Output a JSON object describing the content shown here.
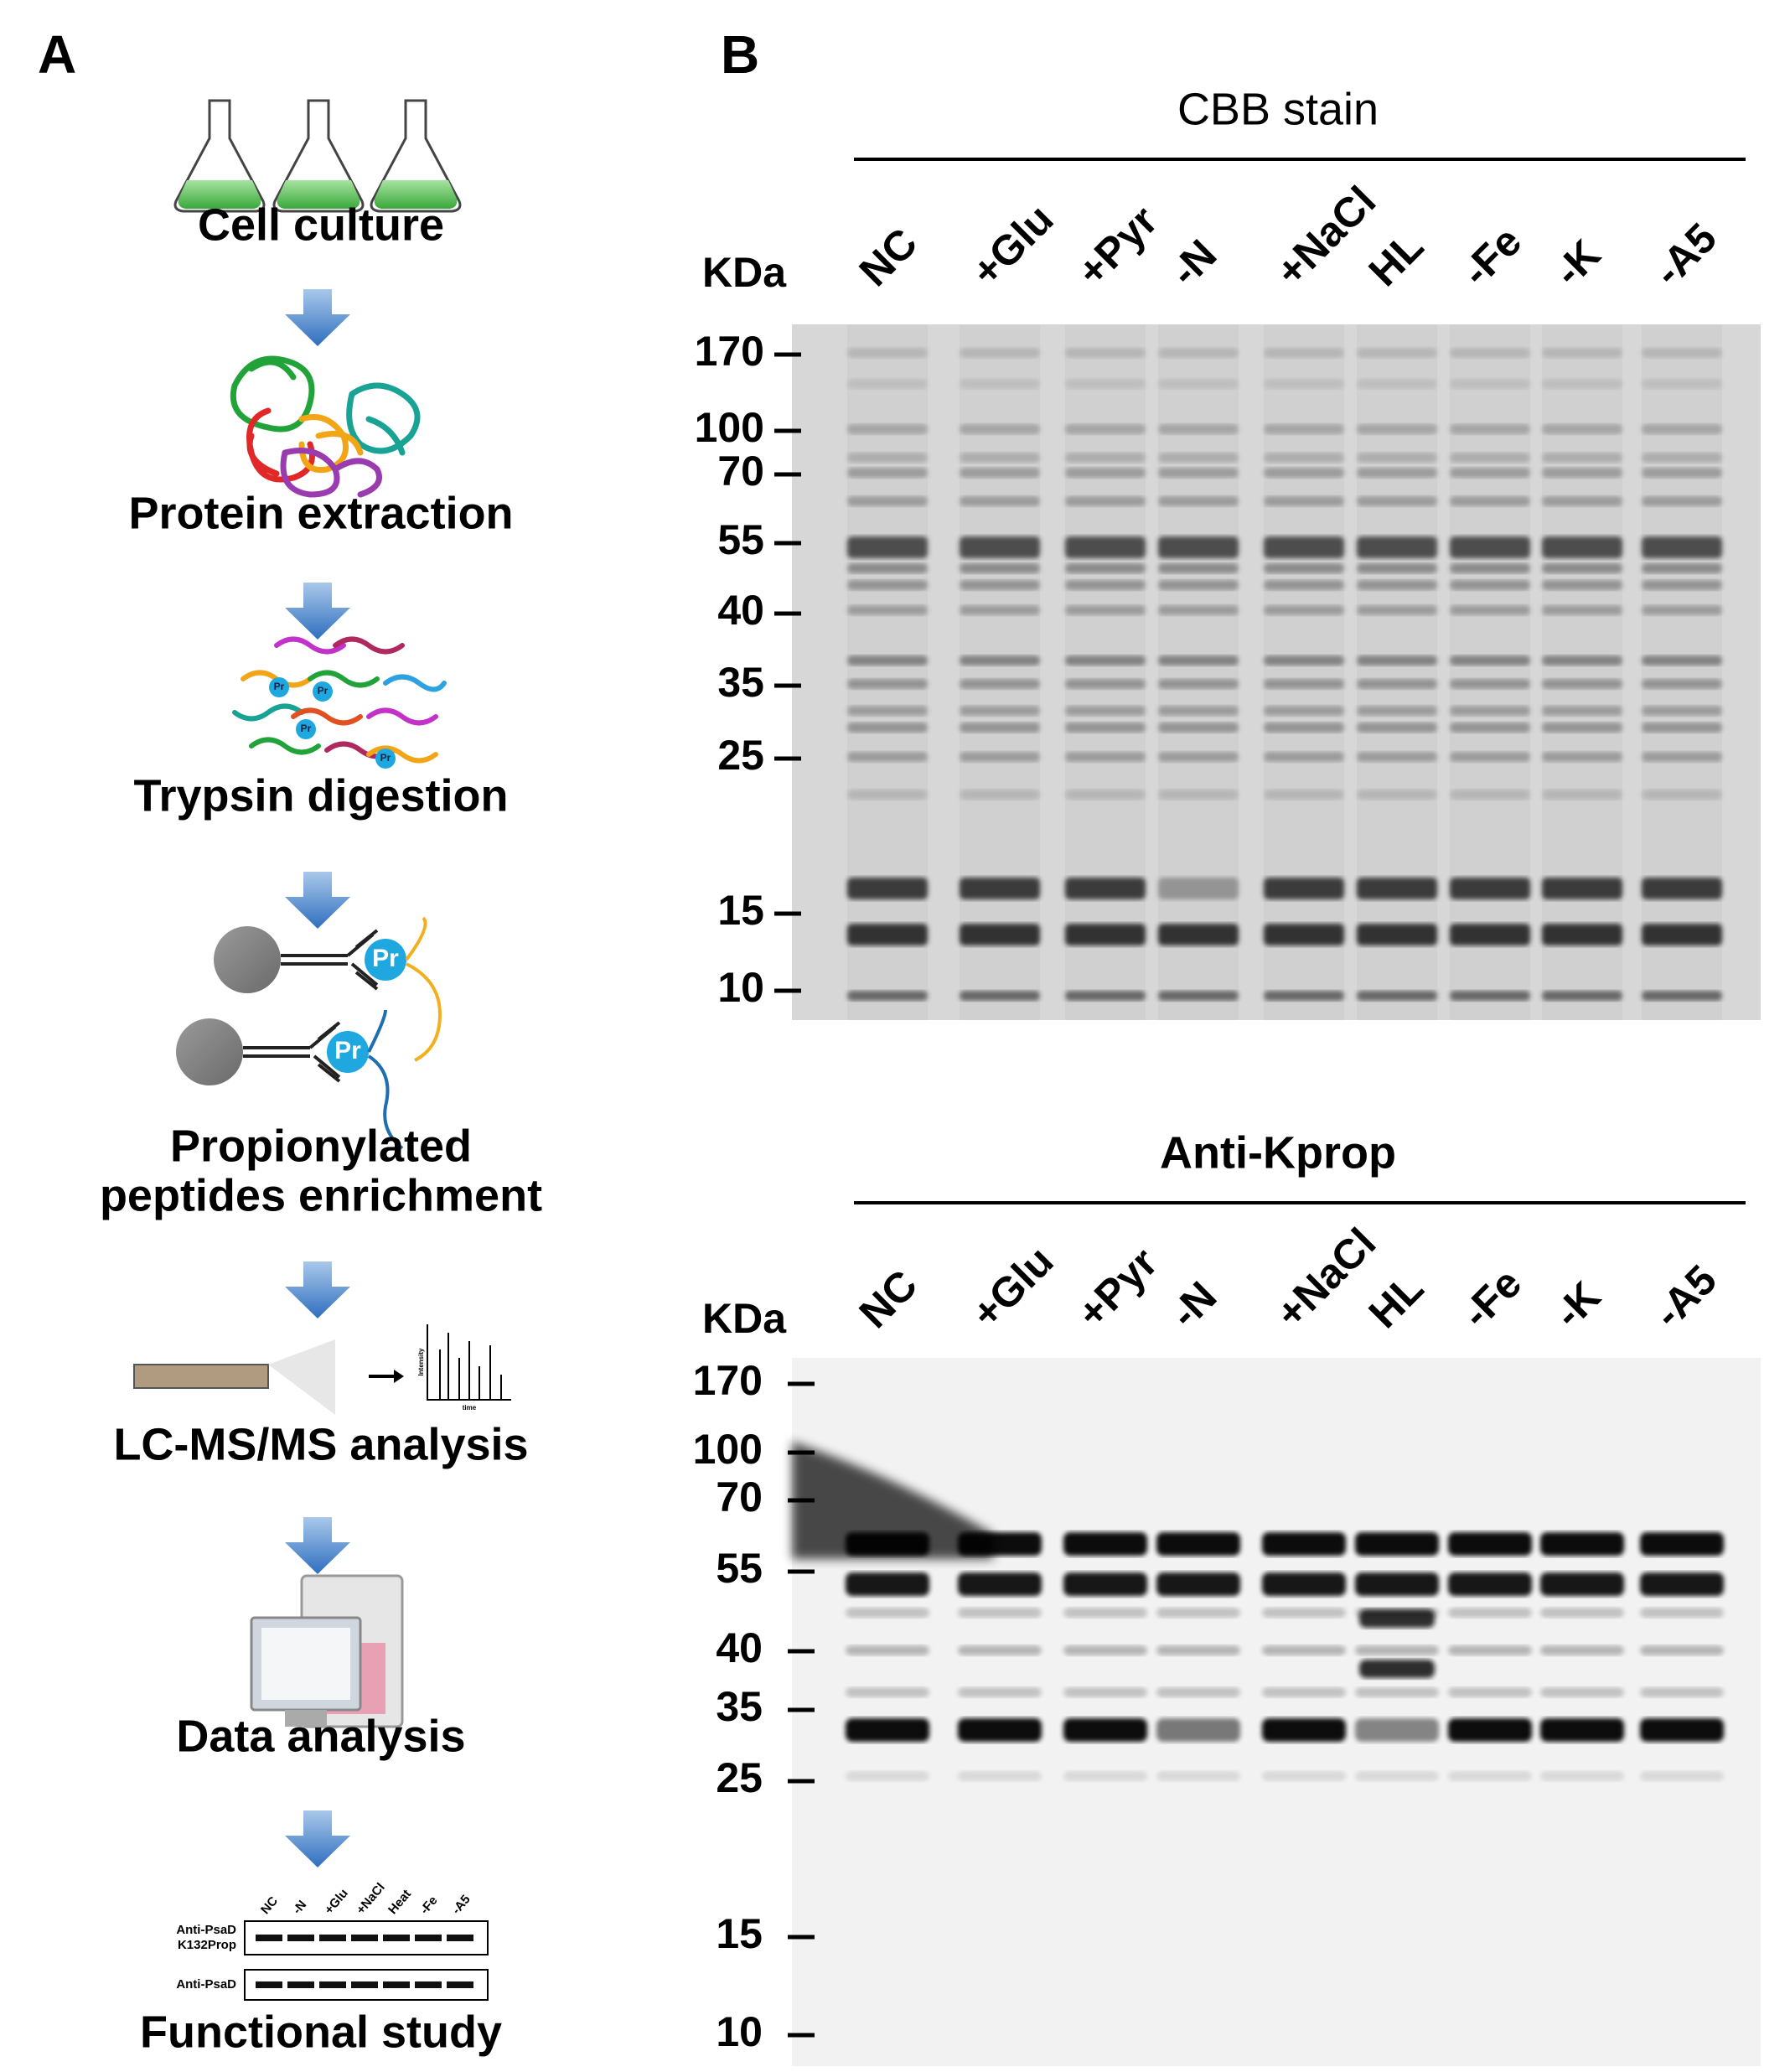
{
  "panel_a": {
    "label": "A",
    "steps": [
      [
        "Cell culture"
      ],
      [
        "Protein extraction"
      ],
      [
        "Trypsin digestion"
      ],
      [
        "Propionylated",
        "peptides enrichment"
      ],
      [
        "LC-MS/MS analysis"
      ],
      [
        "Data analysis"
      ],
      [
        "Functional study"
      ]
    ],
    "modification_label": "Pr",
    "ms_axes": [
      "Intensity",
      "time"
    ],
    "blot_inset": {
      "lanes": [
        "NC",
        "-N",
        "+Glu",
        "+NaCl",
        "Heat",
        "-Fe",
        "-A5"
      ],
      "rows": [
        [
          "Anti-PsaD",
          "K132Prop"
        ],
        [
          "Anti-PsaD"
        ]
      ]
    }
  },
  "panel_b": {
    "label": "B",
    "gels": [
      {
        "title": "CBB stain",
        "unit": "KDa",
        "lanes": [
          "NC",
          "+Glu",
          "+Pyr",
          "-N",
          "+NaCl",
          "HL",
          "-Fe",
          "-K",
          "-A5"
        ],
        "markers": [
          "170",
          "100",
          "70",
          "55",
          "40",
          "35",
          "25",
          "15",
          "10"
        ]
      },
      {
        "title": "Anti-Kprop",
        "unit": "KDa",
        "lanes": [
          "NC",
          "+Glu",
          "+Pyr",
          "-N",
          "+NaCl",
          "HL",
          "-Fe",
          "-K",
          "-A5"
        ],
        "markers": [
          "170",
          "100",
          "70",
          "55",
          "40",
          "35",
          "25",
          "15",
          "10"
        ]
      }
    ]
  }
}
